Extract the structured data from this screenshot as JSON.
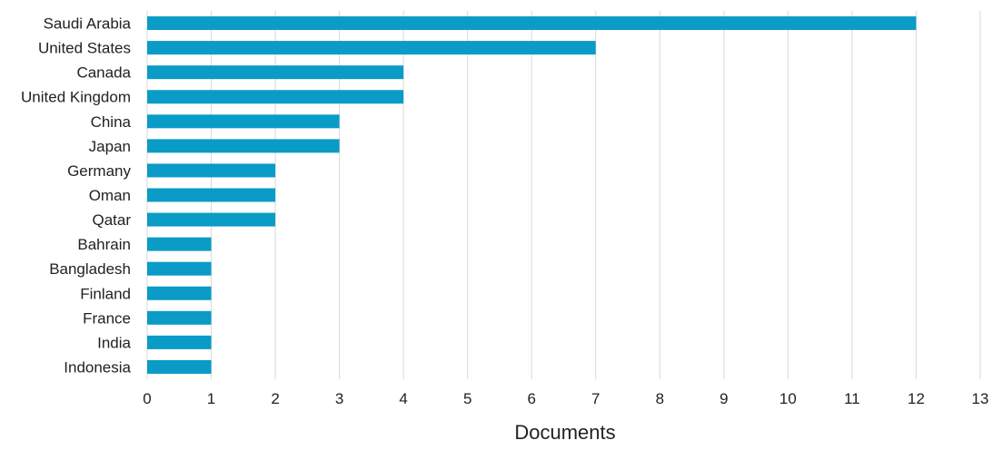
{
  "chart_data": {
    "type": "bar",
    "orientation": "horizontal",
    "title": "",
    "xlabel": "Documents",
    "ylabel": "",
    "xlim": [
      0,
      13
    ],
    "x_ticks": [
      0,
      1,
      2,
      3,
      4,
      5,
      6,
      7,
      8,
      9,
      10,
      11,
      12,
      13
    ],
    "grid": "vertical",
    "legend": "none",
    "bar_color": "#0a9bc7",
    "grid_color": "#d9d9d9",
    "categories": [
      "Saudi Arabia",
      "United States",
      "Canada",
      "United Kingdom",
      "China",
      "Japan",
      "Germany",
      "Oman",
      "Qatar",
      "Bahrain",
      "Bangladesh",
      "Finland",
      "France",
      "India",
      "Indonesia"
    ],
    "values": [
      12,
      7,
      4,
      4,
      3,
      3,
      2,
      2,
      2,
      1,
      1,
      1,
      1,
      1,
      1
    ]
  }
}
